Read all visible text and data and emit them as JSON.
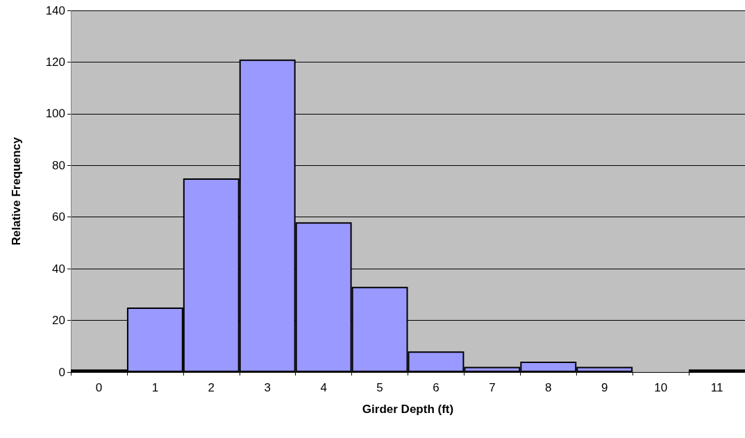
{
  "chart_data": {
    "type": "bar",
    "xlabel": "Girder Depth (ft)",
    "ylabel": "Relative Frequency",
    "categories": [
      "0",
      "1",
      "2",
      "3",
      "4",
      "5",
      "6",
      "7",
      "8",
      "9",
      "10",
      "11"
    ],
    "values": [
      1,
      25,
      75,
      121,
      58,
      33,
      8,
      2,
      4,
      2,
      0,
      1
    ],
    "color": "#9999ff",
    "ylim": [
      0,
      140
    ],
    "yticks": [
      0,
      20,
      40,
      60,
      80,
      100,
      120,
      140
    ],
    "grid": "y"
  }
}
